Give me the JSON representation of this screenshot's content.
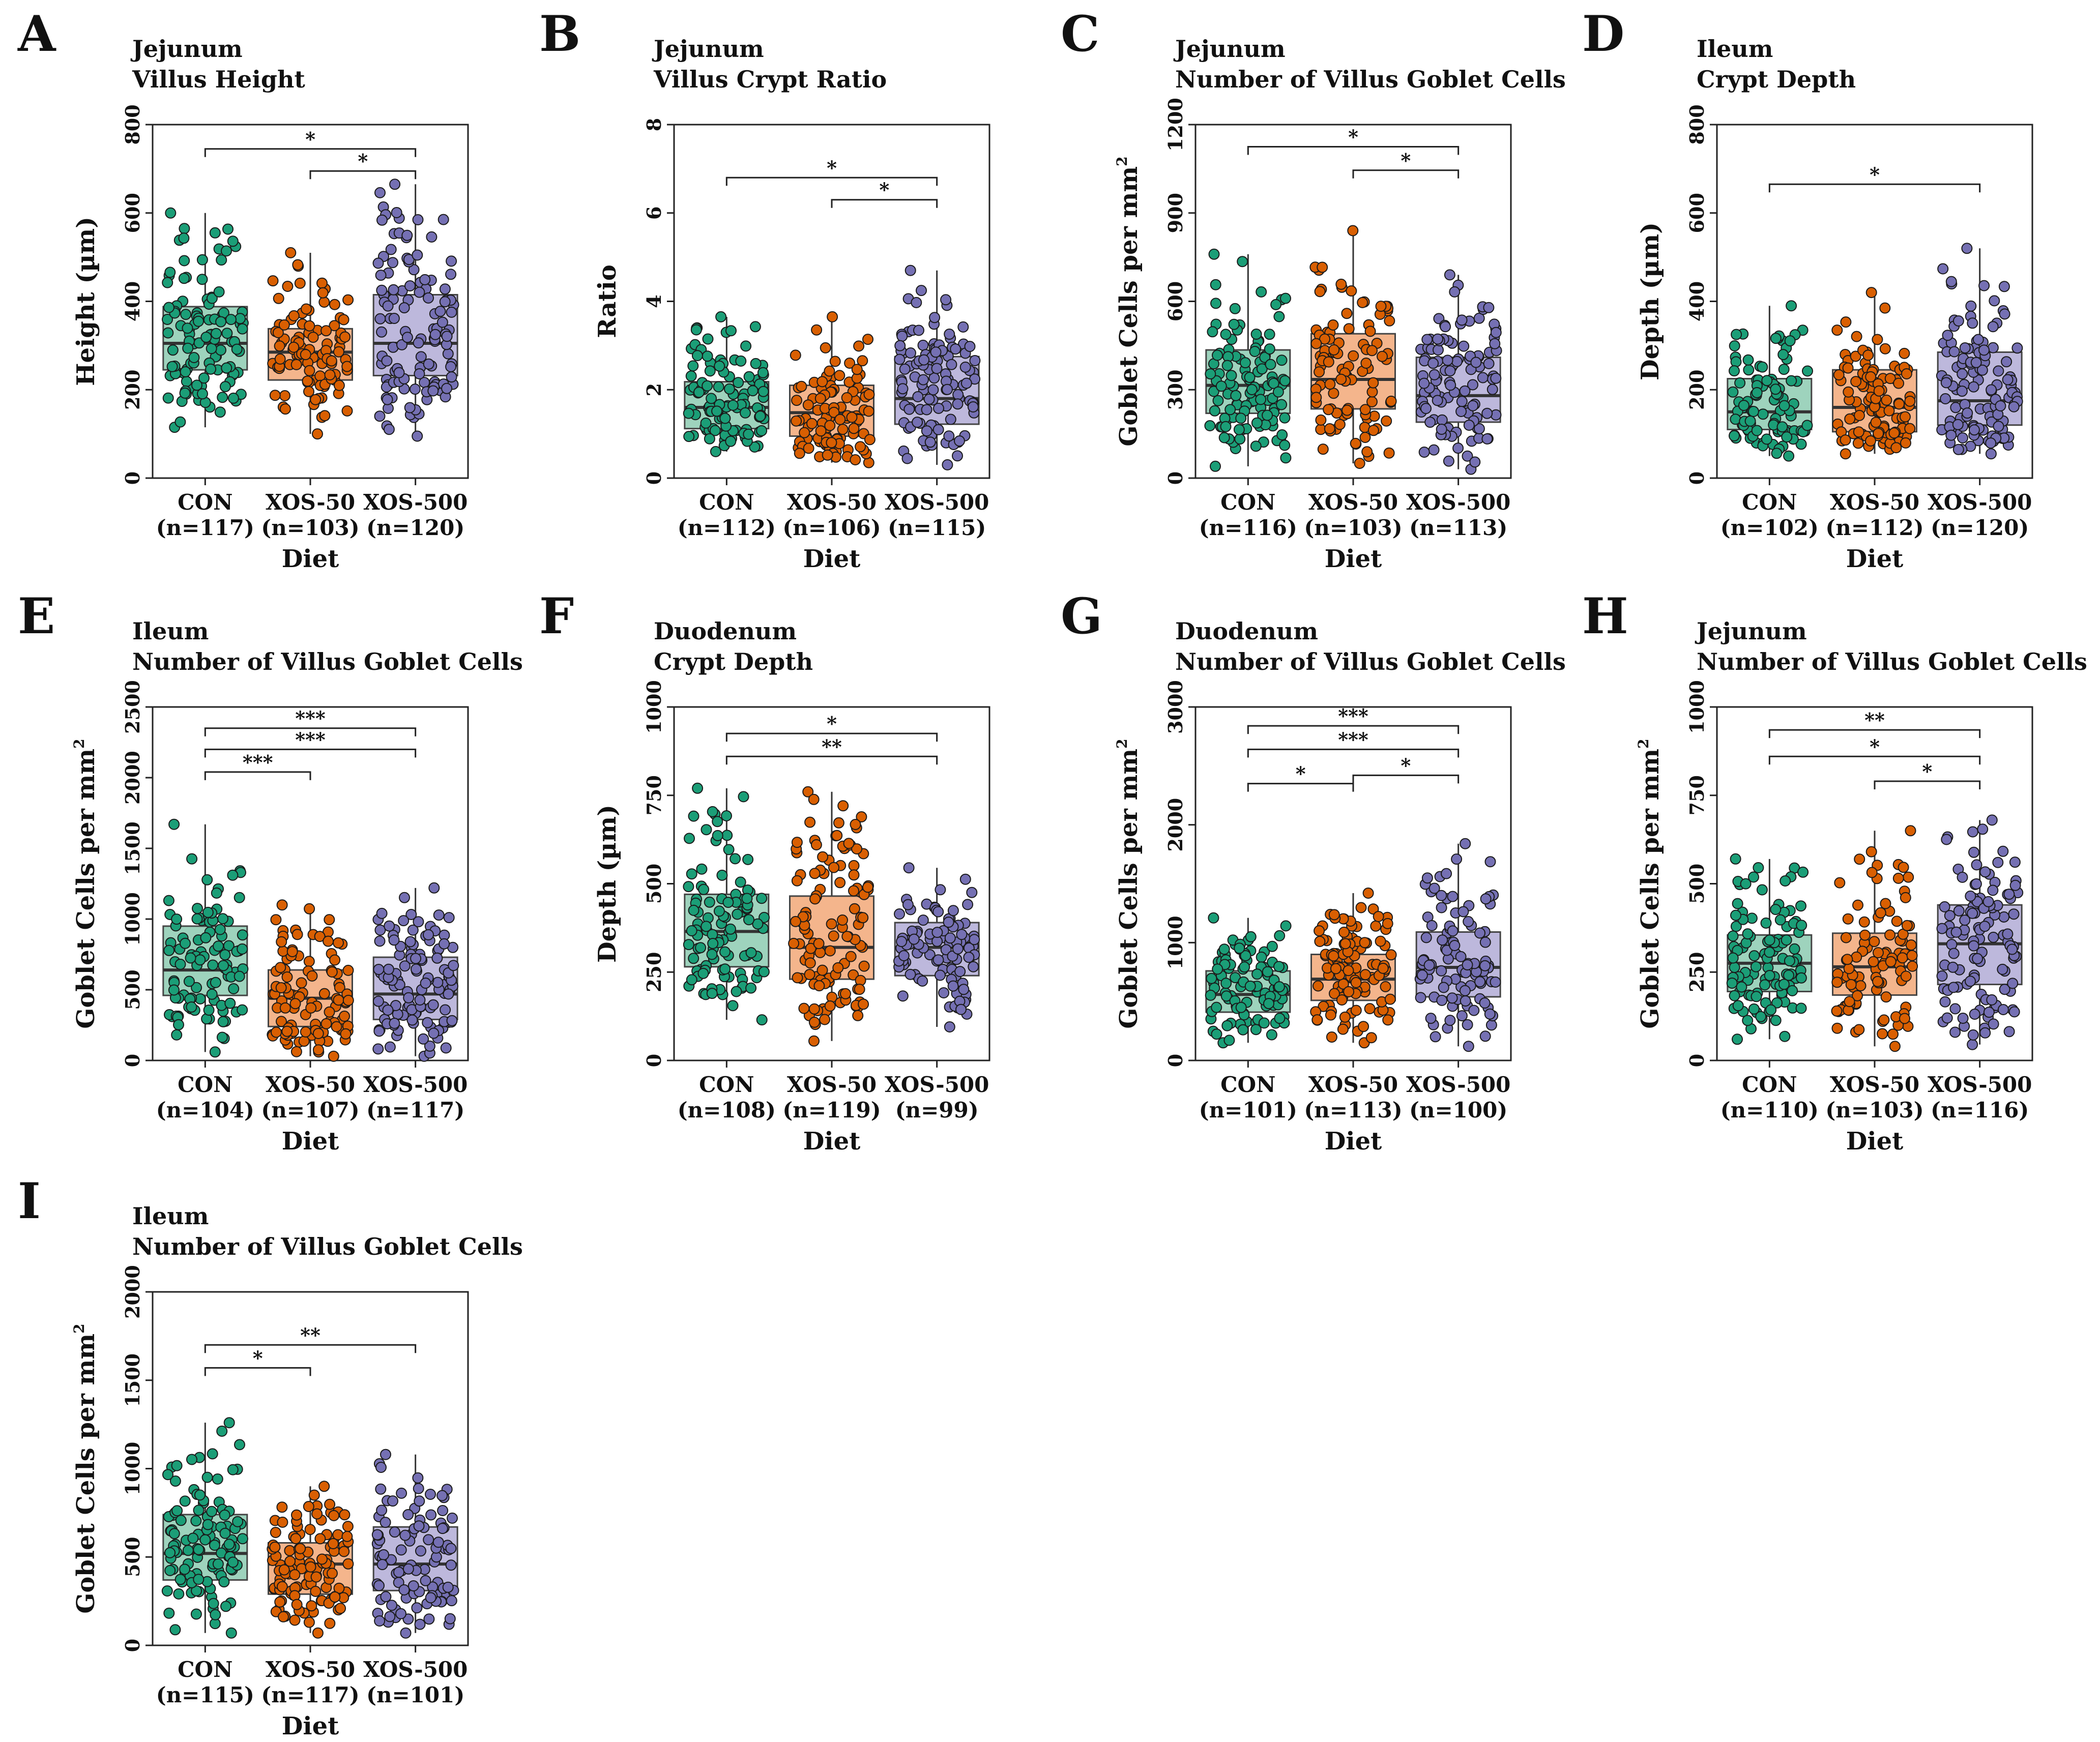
{
  "figure": {
    "groups": [
      "CON",
      "XOS-50",
      "XOS-500"
    ],
    "colors": {
      "CON": {
        "fill": "#9ed3bd",
        "point": "#1b9e77"
      },
      "XOS-50": {
        "fill": "#f4b58c",
        "point": "#d95f02"
      },
      "XOS-500": {
        "fill": "#bdb8dc",
        "point": "#7570b3"
      }
    }
  },
  "chart_data": [
    {
      "panel": "A",
      "type": "box",
      "title": [
        "Jejunum",
        "Villus Height"
      ],
      "xlabel": "Diet",
      "ylabel": "Height (µm)",
      "ylim": [
        0,
        800
      ],
      "yticks": [
        0,
        200,
        400,
        600,
        800
      ],
      "categories": [
        "CON",
        "XOS-50",
        "XOS-500"
      ],
      "n_labels": [
        "(n=117)",
        "(n=103)",
        "(n=120)"
      ],
      "boxes": [
        {
          "min": 115,
          "q1": 245,
          "median": 305,
          "q3": 388,
          "max": 600
        },
        {
          "min": 100,
          "q1": 222,
          "median": 285,
          "q3": 338,
          "max": 510
        },
        {
          "min": 95,
          "q1": 232,
          "median": 305,
          "q3": 415,
          "max": 665
        }
      ],
      "significance": [
        {
          "from": 0,
          "to": 2,
          "label": "*",
          "y": 745
        },
        {
          "from": 1,
          "to": 2,
          "label": "*",
          "y": 695
        }
      ]
    },
    {
      "panel": "B",
      "type": "box",
      "title": [
        "Jejunum",
        "Villus Crypt Ratio"
      ],
      "xlabel": "Diet",
      "ylabel": "Ratio",
      "ylim": [
        0,
        8
      ],
      "yticks": [
        0,
        2,
        4,
        6,
        8
      ],
      "categories": [
        "CON",
        "XOS-50",
        "XOS-500"
      ],
      "n_labels": [
        "(n=112)",
        "(n=106)",
        "(n=115)"
      ],
      "boxes": [
        {
          "min": 0.6,
          "q1": 1.12,
          "median": 1.6,
          "q3": 2.18,
          "max": 3.65
        },
        {
          "min": 0.35,
          "q1": 0.95,
          "median": 1.48,
          "q3": 2.1,
          "max": 3.65
        },
        {
          "min": 0.3,
          "q1": 1.22,
          "median": 1.8,
          "q3": 2.75,
          "max": 4.7
        }
      ],
      "significance": [
        {
          "from": 0,
          "to": 2,
          "label": "*",
          "y": 6.8
        },
        {
          "from": 1,
          "to": 2,
          "label": "*",
          "y": 6.3
        }
      ]
    },
    {
      "panel": "C",
      "type": "box",
      "title": [
        "Jejunum",
        "Number of Villus Goblet Cells"
      ],
      "xlabel": "Diet",
      "ylabel": "Goblet Cells per mm²",
      "ylim": [
        0,
        1200
      ],
      "yticks": [
        0,
        300,
        600,
        900,
        1200
      ],
      "categories": [
        "CON",
        "XOS-50",
        "XOS-500"
      ],
      "n_labels": [
        "(n=116)",
        "(n=103)",
        "(n=113)"
      ],
      "boxes": [
        {
          "min": 40,
          "q1": 220,
          "median": 315,
          "q3": 435,
          "max": 760
        },
        {
          "min": 50,
          "q1": 235,
          "median": 335,
          "q3": 490,
          "max": 840
        },
        {
          "min": 30,
          "q1": 190,
          "median": 280,
          "q3": 410,
          "max": 690
        }
      ],
      "significance": [
        {
          "from": 0,
          "to": 2,
          "label": "*",
          "y": 1125
        },
        {
          "from": 1,
          "to": 2,
          "label": "*",
          "y": 1045
        }
      ]
    },
    {
      "panel": "D",
      "type": "box",
      "title": [
        "Ileum",
        "Crypt Depth"
      ],
      "xlabel": "Diet",
      "ylabel": "Depth (µm)",
      "ylim": [
        0,
        800
      ],
      "yticks": [
        0,
        200,
        400,
        600,
        800
      ],
      "categories": [
        "CON",
        "XOS-50",
        "XOS-500"
      ],
      "n_labels": [
        "(n=102)",
        "(n=112)",
        "(n=120)"
      ],
      "boxes": [
        {
          "min": 50,
          "q1": 110,
          "median": 150,
          "q3": 225,
          "max": 390
        },
        {
          "min": 55,
          "q1": 105,
          "median": 160,
          "q3": 245,
          "max": 420
        },
        {
          "min": 55,
          "q1": 120,
          "median": 175,
          "q3": 285,
          "max": 520
        }
      ],
      "significance": [
        {
          "from": 0,
          "to": 2,
          "label": "*",
          "y": 665
        }
      ]
    },
    {
      "panel": "E",
      "type": "box",
      "title": [
        "Ileum",
        "Number of Villus Goblet Cells"
      ],
      "xlabel": "Diet",
      "ylabel": "Goblet Cells per mm²",
      "ylim": [
        0,
        2500
      ],
      "yticks": [
        0,
        500,
        1000,
        1500,
        2000,
        2500
      ],
      "categories": [
        "CON",
        "XOS-50",
        "XOS-500"
      ],
      "n_labels": [
        "(n=104)",
        "(n=107)",
        "(n=117)"
      ],
      "boxes": [
        {
          "min": 60,
          "q1": 460,
          "median": 640,
          "q3": 950,
          "max": 1670
        },
        {
          "min": 30,
          "q1": 240,
          "median": 440,
          "q3": 640,
          "max": 1100
        },
        {
          "min": 30,
          "q1": 290,
          "median": 470,
          "q3": 730,
          "max": 1220
        }
      ],
      "significance": [
        {
          "from": 0,
          "to": 2,
          "label": "***",
          "y": 2350
        },
        {
          "from": 0,
          "to": 2,
          "label": "***",
          "y": 2200
        },
        {
          "from": 0,
          "to": 1,
          "label": "***",
          "y": 2040
        }
      ]
    },
    {
      "panel": "F",
      "type": "box",
      "title": [
        "Duodenum",
        "Crypt Depth"
      ],
      "xlabel": "Diet",
      "ylabel": "Depth (µm)",
      "ylim": [
        0,
        1000
      ],
      "yticks": [
        0,
        250,
        500,
        750,
        1000
      ],
      "categories": [
        "CON",
        "XOS-50",
        "XOS-500"
      ],
      "n_labels": [
        "(n=108)",
        "(n=119)",
        "(n=99)"
      ],
      "boxes": [
        {
          "min": 115,
          "q1": 265,
          "median": 365,
          "q3": 470,
          "max": 770
        },
        {
          "min": 55,
          "q1": 230,
          "median": 320,
          "q3": 465,
          "max": 760
        },
        {
          "min": 95,
          "q1": 240,
          "median": 320,
          "q3": 390,
          "max": 545
        }
      ],
      "significance": [
        {
          "from": 0,
          "to": 2,
          "label": "*",
          "y": 925
        },
        {
          "from": 0,
          "to": 2,
          "label": "**",
          "y": 860
        }
      ]
    },
    {
      "panel": "G",
      "type": "box",
      "title": [
        "Duodenum",
        "Number of Villus Goblet Cells"
      ],
      "xlabel": "Diet",
      "ylabel": "Goblet Cells per mm²",
      "ylim": [
        0,
        3000
      ],
      "yticks": [
        0,
        1000,
        2000,
        3000
      ],
      "categories": [
        "CON",
        "XOS-50",
        "XOS-500"
      ],
      "n_labels": [
        "(n=101)",
        "(n=113)",
        "(n=100)"
      ],
      "boxes": [
        {
          "min": 150,
          "q1": 410,
          "median": 560,
          "q3": 760,
          "max": 1210
        },
        {
          "min": 150,
          "q1": 510,
          "median": 690,
          "q3": 900,
          "max": 1420
        },
        {
          "min": 120,
          "q1": 540,
          "median": 790,
          "q3": 1090,
          "max": 1840
        }
      ],
      "significance": [
        {
          "from": 0,
          "to": 2,
          "label": "***",
          "y": 2840
        },
        {
          "from": 0,
          "to": 2,
          "label": "***",
          "y": 2640
        },
        {
          "from": 1,
          "to": 2,
          "label": "*",
          "y": 2420
        },
        {
          "from": 0,
          "to": 1,
          "label": "*",
          "y": 2350
        }
      ]
    },
    {
      "panel": "H",
      "type": "box",
      "title": [
        "Jejunum",
        "Number of Villus Goblet Cells"
      ],
      "xlabel": "Diet",
      "ylabel": "Goblet Cells per mm²",
      "ylim": [
        0,
        1000
      ],
      "yticks": [
        0,
        250,
        500,
        750,
        1000
      ],
      "categories": [
        "CON",
        "XOS-50",
        "XOS-500"
      ],
      "n_labels": [
        "(n=110)",
        "(n=103)",
        "(n=116)"
      ],
      "boxes": [
        {
          "min": 60,
          "q1": 195,
          "median": 275,
          "q3": 355,
          "max": 570
        },
        {
          "min": 40,
          "q1": 185,
          "median": 265,
          "q3": 360,
          "max": 650
        },
        {
          "min": 45,
          "q1": 215,
          "median": 330,
          "q3": 440,
          "max": 680
        }
      ],
      "significance": [
        {
          "from": 0,
          "to": 2,
          "label": "**",
          "y": 935
        },
        {
          "from": 0,
          "to": 2,
          "label": "*",
          "y": 860
        },
        {
          "from": 1,
          "to": 2,
          "label": "*",
          "y": 790
        }
      ]
    },
    {
      "panel": "I",
      "type": "box",
      "title": [
        "Ileum",
        "Number of Villus Goblet Cells"
      ],
      "xlabel": "Diet",
      "ylabel": "Goblet Cells per mm²",
      "ylim": [
        0,
        2000
      ],
      "yticks": [
        0,
        500,
        1000,
        1500,
        2000
      ],
      "categories": [
        "CON",
        "XOS-50",
        "XOS-500"
      ],
      "n_labels": [
        "(n=115)",
        "(n=117)",
        "(n=101)"
      ],
      "boxes": [
        {
          "min": 70,
          "q1": 370,
          "median": 520,
          "q3": 740,
          "max": 1260
        },
        {
          "min": 70,
          "q1": 290,
          "median": 460,
          "q3": 580,
          "max": 900
        },
        {
          "min": 70,
          "q1": 310,
          "median": 460,
          "q3": 670,
          "max": 1080
        }
      ],
      "significance": [
        {
          "from": 0,
          "to": 2,
          "label": "**",
          "y": 1700
        },
        {
          "from": 0,
          "to": 1,
          "label": "*",
          "y": 1570
        }
      ]
    }
  ]
}
